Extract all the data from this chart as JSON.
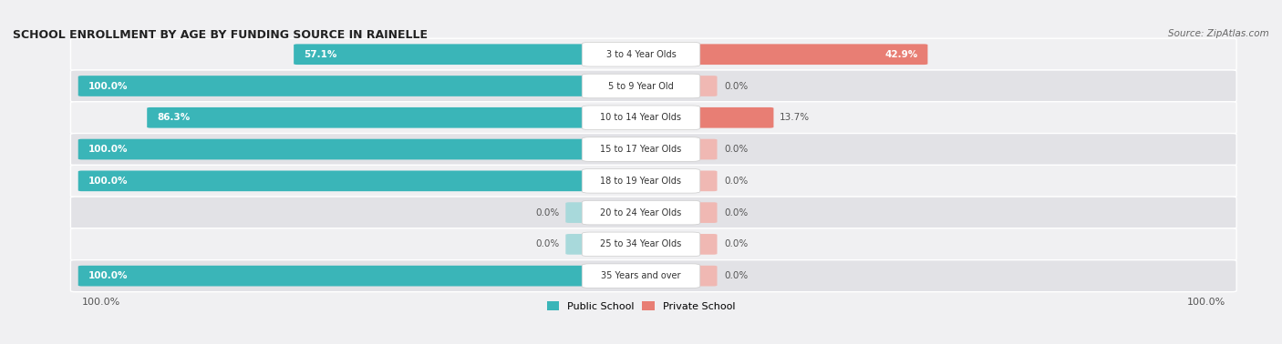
{
  "title": "SCHOOL ENROLLMENT BY AGE BY FUNDING SOURCE IN RAINELLE",
  "source": "Source: ZipAtlas.com",
  "categories": [
    "3 to 4 Year Olds",
    "5 to 9 Year Old",
    "10 to 14 Year Olds",
    "15 to 17 Year Olds",
    "18 to 19 Year Olds",
    "20 to 24 Year Olds",
    "25 to 34 Year Olds",
    "35 Years and over"
  ],
  "public_values": [
    57.1,
    100.0,
    86.3,
    100.0,
    100.0,
    0.0,
    0.0,
    100.0
  ],
  "private_values": [
    42.9,
    0.0,
    13.7,
    0.0,
    0.0,
    0.0,
    0.0,
    0.0
  ],
  "public_color": "#3ab5b8",
  "private_color": "#e87e74",
  "public_color_faint": "#a8d9db",
  "private_color_faint": "#f0b8b3",
  "row_bg_even": "#f0f0f2",
  "row_bg_odd": "#e2e2e6",
  "legend_public": "Public School",
  "legend_private": "Private School",
  "bottom_left_label": "100.0%",
  "bottom_right_label": "100.0%",
  "fig_bg": "#f0f0f2"
}
